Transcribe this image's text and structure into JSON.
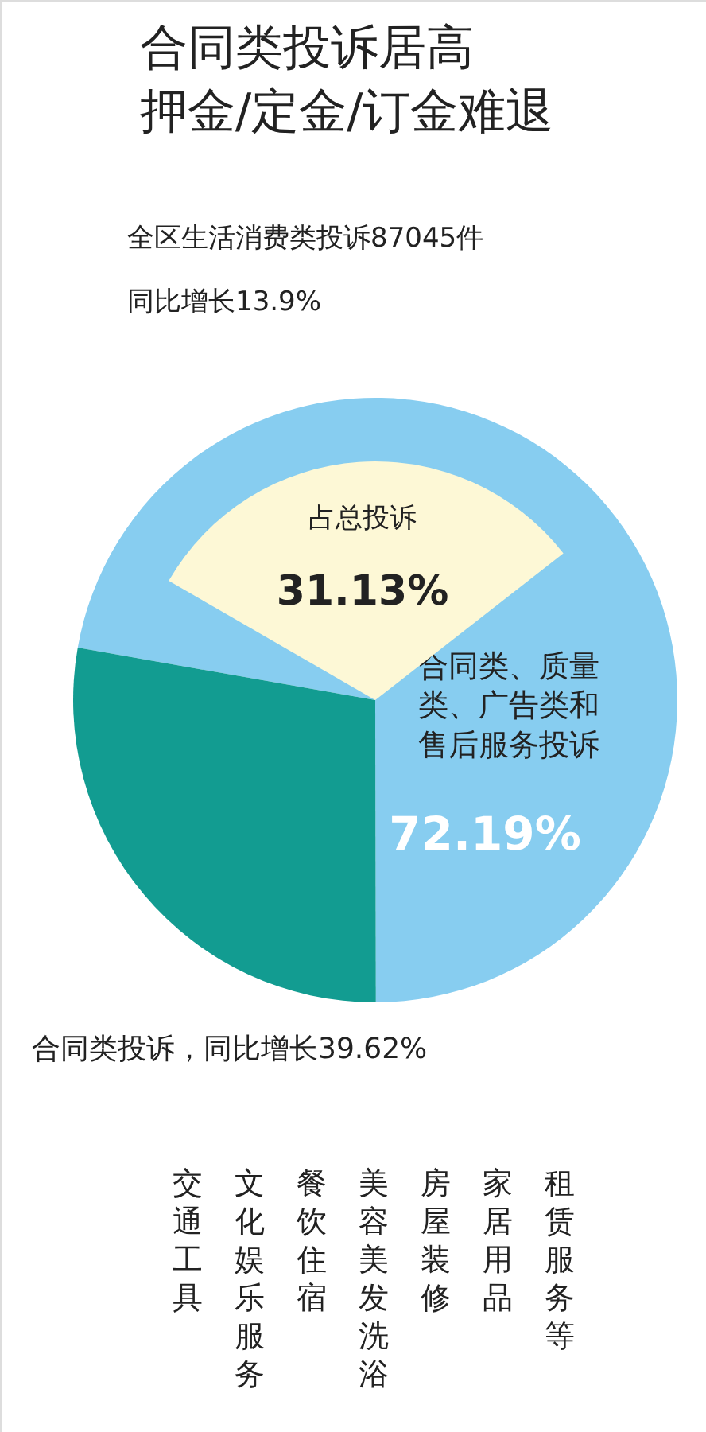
{
  "chart_data": [
    {
      "type": "pie",
      "title": "合同类投诉居高押金/定金/订金难退",
      "annotations": [
        "全区生活消费类投诉87045件",
        "同比增长13.9%",
        "合同类投诉，同比增长39.62%",
        "交通工具",
        "文化娱乐服务",
        "餐饮住宿",
        "美容美发洗浴",
        "房屋装修",
        "家居用品",
        "租赁服务等"
      ],
      "categories": [
        "合同类、质量类、广告类和售后服务投诉",
        null
      ],
      "values": [
        72.19,
        27.81
      ],
      "colors": [
        "#87cdf0",
        "#129c91"
      ],
      "value_labels": [
        "72.19%",
        null
      ]
    },
    {
      "type": "pie",
      "categories": [
        "占总投诉"
      ],
      "values": [
        31.13
      ],
      "colors": [
        "#fdf8d6"
      ],
      "value_labels": [
        "31.13%"
      ]
    }
  ]
}
